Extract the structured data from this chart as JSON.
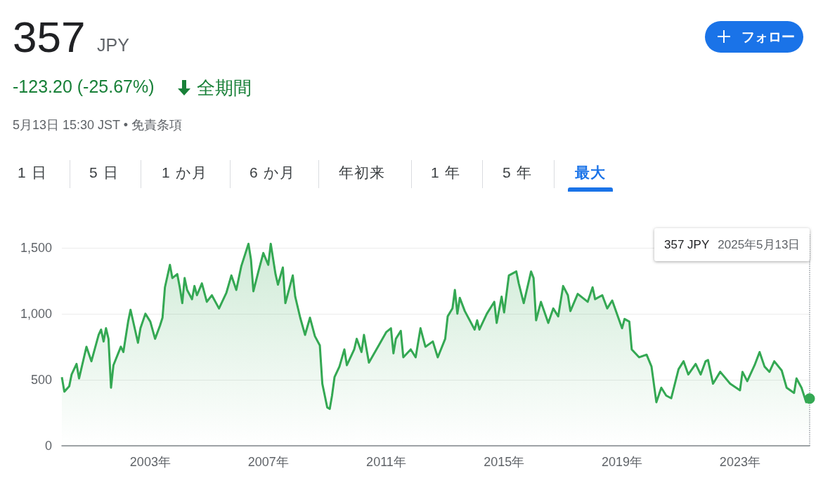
{
  "chart_data": {
    "type": "area",
    "title": "357",
    "subtitle": "JPY",
    "x": [
      "2000-01",
      "2000-02",
      "2000-04",
      "2000-05",
      "2000-07",
      "2000-08",
      "2000-11",
      "2001-01",
      "2001-04",
      "2001-05",
      "2001-06",
      "2001-07",
      "2001-08",
      "2001-09",
      "2001-10",
      "2002-01",
      "2002-02",
      "2002-04",
      "2002-05",
      "2002-08",
      "2002-09",
      "2002-11",
      "2003-01",
      "2003-03",
      "2003-05",
      "2003-06",
      "2003-07",
      "2003-09",
      "2003-10",
      "2003-12",
      "2004-01",
      "2004-02",
      "2004-03",
      "2004-04",
      "2004-06",
      "2004-07",
      "2004-08",
      "2004-10",
      "2004-12",
      "2005-02",
      "2005-05",
      "2005-08",
      "2005-10",
      "2005-12",
      "2006-02",
      "2006-05",
      "2006-06",
      "2006-07",
      "2006-09",
      "2006-11",
      "2007-01",
      "2007-02",
      "2007-04",
      "2007-05",
      "2007-07",
      "2007-08",
      "2007-11",
      "2007-12",
      "2008-02",
      "2008-04",
      "2008-06",
      "2008-08",
      "2008-10",
      "2008-11",
      "2009-01",
      "2009-02",
      "2009-03",
      "2009-04",
      "2009-06",
      "2009-08",
      "2009-09",
      "2009-12",
      "2010-01",
      "2010-03",
      "2010-04",
      "2010-06",
      "2010-10",
      "2011-01",
      "2011-03",
      "2011-04",
      "2011-05",
      "2011-07",
      "2011-08",
      "2011-11",
      "2012-01",
      "2012-03",
      "2012-05",
      "2012-08",
      "2012-10",
      "2013-01",
      "2013-02",
      "2013-04",
      "2013-05",
      "2013-06",
      "2013-07",
      "2013-09",
      "2014-01",
      "2014-02",
      "2014-03",
      "2014-06",
      "2014-09",
      "2014-10",
      "2014-12",
      "2015-01",
      "2015-03",
      "2015-06",
      "2015-07",
      "2015-09",
      "2015-12",
      "2016-01",
      "2016-02",
      "2016-04",
      "2016-07",
      "2016-09",
      "2016-11",
      "2017-01",
      "2017-03",
      "2017-04",
      "2017-07",
      "2017-11",
      "2018-01",
      "2018-02",
      "2018-05",
      "2018-07",
      "2018-09",
      "2019-01",
      "2019-02",
      "2019-04",
      "2019-05",
      "2019-08",
      "2019-11",
      "2020-01",
      "2020-03",
      "2020-05",
      "2020-07",
      "2020-09",
      "2020-12",
      "2021-02",
      "2021-04",
      "2021-07",
      "2021-09",
      "2021-11",
      "2021-12",
      "2022-02",
      "2022-05",
      "2022-09",
      "2023-01",
      "2023-02",
      "2023-04",
      "2023-07",
      "2023-09",
      "2023-11",
      "2024-01",
      "2024-03",
      "2024-06",
      "2024-08",
      "2024-11",
      "2024-12",
      "2025-02",
      "2025-04",
      "2025-05-13"
    ],
    "series": [
      {
        "color": "#34a853",
        "values": [
          520,
          410,
          450,
          540,
          620,
          510,
          750,
          640,
          840,
          880,
          790,
          890,
          810,
          440,
          610,
          750,
          710,
          940,
          1030,
          780,
          890,
          1000,
          940,
          810,
          910,
          970,
          1200,
          1370,
          1270,
          1300,
          1200,
          1080,
          1270,
          1180,
          1110,
          1210,
          1140,
          1230,
          1090,
          1140,
          1040,
          1160,
          1290,
          1180,
          1360,
          1530,
          1410,
          1170,
          1320,
          1460,
          1370,
          1530,
          1300,
          1220,
          1350,
          1080,
          1290,
          1130,
          970,
          840,
          970,
          830,
          760,
          470,
          290,
          280,
          380,
          520,
          600,
          730,
          610,
          730,
          810,
          710,
          840,
          630,
          760,
          860,
          890,
          700,
          810,
          870,
          670,
          730,
          670,
          890,
          750,
          790,
          670,
          810,
          980,
          1040,
          1180,
          1000,
          1120,
          1020,
          880,
          950,
          880,
          1000,
          1090,
          930,
          1130,
          1010,
          1290,
          1320,
          1230,
          1080,
          1320,
          1270,
          950,
          1090,
          930,
          1040,
          980,
          1210,
          1140,
          1020,
          1150,
          1090,
          1200,
          1110,
          1140,
          1040,
          1100,
          890,
          960,
          940,
          730,
          670,
          690,
          600,
          330,
          440,
          380,
          360,
          580,
          640,
          540,
          620,
          540,
          640,
          650,
          470,
          560,
          470,
          420,
          560,
          490,
          610,
          710,
          600,
          560,
          640,
          570,
          440,
          400,
          510,
          440,
          330,
          357
        ]
      }
    ],
    "xlim": [
      "2000-01",
      "2025-05-13"
    ],
    "xticks": [
      {
        "value": "2003",
        "label": "2003年"
      },
      {
        "value": "2007",
        "label": "2007年"
      },
      {
        "value": "2011",
        "label": "2011年"
      },
      {
        "value": "2015",
        "label": "2015年"
      },
      {
        "value": "2019",
        "label": "2019年"
      },
      {
        "value": "2023",
        "label": "2023年"
      }
    ],
    "ylim": [
      0,
      1600
    ],
    "yticks": [
      0,
      500,
      {
        "value": 1000,
        "label": "1,000"
      },
      {
        "value": 1500,
        "label": "1,500"
      }
    ],
    "grid": "y",
    "marker": "none",
    "ref_lines": [
      {
        "axis": "x",
        "value": "2025-05-13",
        "color": "#9aa0a6",
        "line_style": "dotted"
      }
    ],
    "annotations": [
      "-123.20 (-25.67%)",
      "全期間",
      "5月13日 15:30 JST • 免責条項",
      "フォロー",
      "1 日",
      "5 日",
      "1 か月",
      "6 か月",
      "年初来",
      "1 年",
      "5 年",
      "最大",
      "357 JPY",
      "2025年5月13日"
    ]
  }
}
